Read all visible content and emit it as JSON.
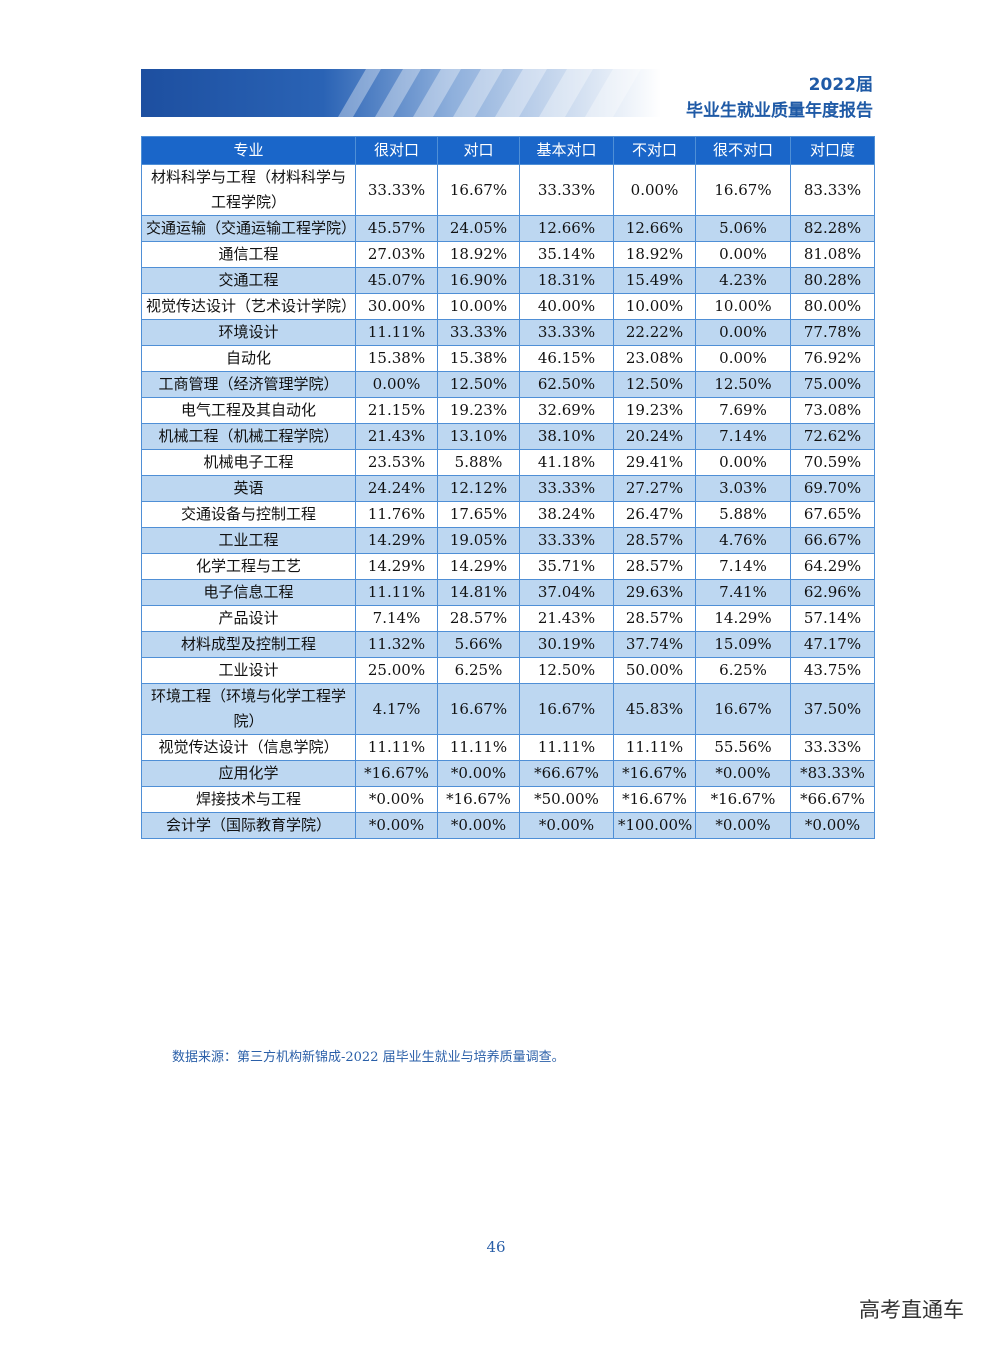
{
  "header": {
    "year": "2022届",
    "title": "毕业生就业质量年度报告"
  },
  "table": {
    "headers": [
      "专业",
      "很对口",
      "对口",
      "基本对口",
      "不对口",
      "很不对口",
      "对口度"
    ],
    "rows": [
      [
        "材料科学与工程（材料科学与工程学院）",
        "33.33%",
        "16.67%",
        "33.33%",
        "0.00%",
        "16.67%",
        "83.33%"
      ],
      [
        "交通运输（交通运输工程学院）",
        "45.57%",
        "24.05%",
        "12.66%",
        "12.66%",
        "5.06%",
        "82.28%"
      ],
      [
        "通信工程",
        "27.03%",
        "18.92%",
        "35.14%",
        "18.92%",
        "0.00%",
        "81.08%"
      ],
      [
        "交通工程",
        "45.07%",
        "16.90%",
        "18.31%",
        "15.49%",
        "4.23%",
        "80.28%"
      ],
      [
        "视觉传达设计（艺术设计学院）",
        "30.00%",
        "10.00%",
        "40.00%",
        "10.00%",
        "10.00%",
        "80.00%"
      ],
      [
        "环境设计",
        "11.11%",
        "33.33%",
        "33.33%",
        "22.22%",
        "0.00%",
        "77.78%"
      ],
      [
        "自动化",
        "15.38%",
        "15.38%",
        "46.15%",
        "23.08%",
        "0.00%",
        "76.92%"
      ],
      [
        "工商管理（经济管理学院）",
        "0.00%",
        "12.50%",
        "62.50%",
        "12.50%",
        "12.50%",
        "75.00%"
      ],
      [
        "电气工程及其自动化",
        "21.15%",
        "19.23%",
        "32.69%",
        "19.23%",
        "7.69%",
        "73.08%"
      ],
      [
        "机械工程（机械工程学院）",
        "21.43%",
        "13.10%",
        "38.10%",
        "20.24%",
        "7.14%",
        "72.62%"
      ],
      [
        "机械电子工程",
        "23.53%",
        "5.88%",
        "41.18%",
        "29.41%",
        "0.00%",
        "70.59%"
      ],
      [
        "英语",
        "24.24%",
        "12.12%",
        "33.33%",
        "27.27%",
        "3.03%",
        "69.70%"
      ],
      [
        "交通设备与控制工程",
        "11.76%",
        "17.65%",
        "38.24%",
        "26.47%",
        "5.88%",
        "67.65%"
      ],
      [
        "工业工程",
        "14.29%",
        "19.05%",
        "33.33%",
        "28.57%",
        "4.76%",
        "66.67%"
      ],
      [
        "化学工程与工艺",
        "14.29%",
        "14.29%",
        "35.71%",
        "28.57%",
        "7.14%",
        "64.29%"
      ],
      [
        "电子信息工程",
        "11.11%",
        "14.81%",
        "37.04%",
        "29.63%",
        "7.41%",
        "62.96%"
      ],
      [
        "产品设计",
        "7.14%",
        "28.57%",
        "21.43%",
        "28.57%",
        "14.29%",
        "57.14%"
      ],
      [
        "材料成型及控制工程",
        "11.32%",
        "5.66%",
        "30.19%",
        "37.74%",
        "15.09%",
        "47.17%"
      ],
      [
        "工业设计",
        "25.00%",
        "6.25%",
        "12.50%",
        "50.00%",
        "6.25%",
        "43.75%"
      ],
      [
        "环境工程（环境与化学工程学院）",
        "4.17%",
        "16.67%",
        "16.67%",
        "45.83%",
        "16.67%",
        "37.50%"
      ],
      [
        "视觉传达设计（信息学院）",
        "11.11%",
        "11.11%",
        "11.11%",
        "11.11%",
        "55.56%",
        "33.33%"
      ],
      [
        "应用化学",
        "*16.67%",
        "*0.00%",
        "*66.67%",
        "*16.67%",
        "*0.00%",
        "*83.33%"
      ],
      [
        "焊接技术与工程",
        "*0.00%",
        "*16.67%",
        "*50.00%",
        "*16.67%",
        "*16.67%",
        "*66.67%"
      ],
      [
        "会计学（国际教育学院）",
        "*0.00%",
        "*0.00%",
        "*0.00%",
        "*100.00%",
        "*0.00%",
        "*0.00%"
      ]
    ]
  },
  "source_note": "数据来源：第三方机构新锦成-2022 届毕业生就业与培养质量调查。",
  "page_number": "46",
  "watermark": "高考直通车",
  "colors": {
    "header_bg": "#1a66c9",
    "stripe": "#bdd7f1",
    "border": "#4f8fd6",
    "accent_text": "#1f5aa6"
  }
}
